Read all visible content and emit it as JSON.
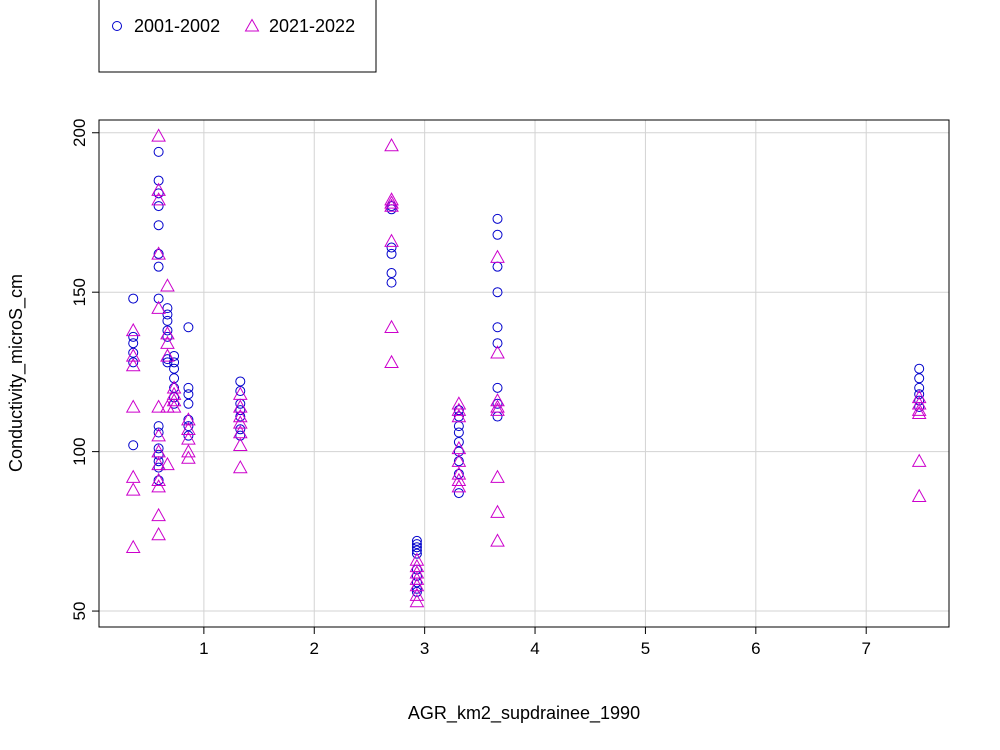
{
  "chart_data": {
    "type": "scatter",
    "title": "",
    "xlabel": "AGR_km2_supdrainee_1990",
    "ylabel": "Conductivity_microS_cm",
    "xlim": [
      0.05,
      7.75
    ],
    "ylim": [
      45,
      204
    ],
    "x_ticks": [
      1,
      2,
      3,
      4,
      5,
      6,
      7
    ],
    "y_ticks": [
      50,
      100,
      150,
      200
    ],
    "grid": true,
    "legend_position": "top-left",
    "series": [
      {
        "name": "2001-2002",
        "marker": "circle",
        "color": "#0000cc",
        "points": [
          [
            0.36,
            148
          ],
          [
            0.36,
            136
          ],
          [
            0.36,
            134
          ],
          [
            0.36,
            131
          ],
          [
            0.36,
            128
          ],
          [
            0.36,
            102
          ],
          [
            0.59,
            194
          ],
          [
            0.59,
            185
          ],
          [
            0.59,
            181
          ],
          [
            0.59,
            177
          ],
          [
            0.59,
            171
          ],
          [
            0.59,
            162
          ],
          [
            0.59,
            158
          ],
          [
            0.59,
            148
          ],
          [
            0.59,
            108
          ],
          [
            0.59,
            106
          ],
          [
            0.59,
            101
          ],
          [
            0.59,
            99
          ],
          [
            0.59,
            97
          ],
          [
            0.59,
            95
          ],
          [
            0.59,
            91
          ],
          [
            0.67,
            145
          ],
          [
            0.67,
            143
          ],
          [
            0.67,
            141
          ],
          [
            0.67,
            138
          ],
          [
            0.67,
            136
          ],
          [
            0.67,
            129
          ],
          [
            0.67,
            128
          ],
          [
            0.73,
            130
          ],
          [
            0.73,
            128
          ],
          [
            0.73,
            126
          ],
          [
            0.73,
            123
          ],
          [
            0.73,
            120
          ],
          [
            0.73,
            117
          ],
          [
            0.73,
            115
          ],
          [
            0.86,
            139
          ],
          [
            0.86,
            120
          ],
          [
            0.86,
            118
          ],
          [
            0.86,
            115
          ],
          [
            0.86,
            110
          ],
          [
            0.86,
            108
          ],
          [
            0.86,
            105
          ],
          [
            1.33,
            122
          ],
          [
            1.33,
            119
          ],
          [
            1.33,
            115
          ],
          [
            1.33,
            113
          ],
          [
            1.33,
            111
          ],
          [
            1.33,
            107
          ],
          [
            1.33,
            105
          ],
          [
            2.7,
            177
          ],
          [
            2.7,
            176
          ],
          [
            2.7,
            164
          ],
          [
            2.7,
            162
          ],
          [
            2.7,
            156
          ],
          [
            2.7,
            153
          ],
          [
            2.93,
            72
          ],
          [
            2.93,
            71
          ],
          [
            2.93,
            70
          ],
          [
            2.93,
            69
          ],
          [
            2.93,
            68
          ],
          [
            2.93,
            63
          ],
          [
            2.93,
            61
          ],
          [
            2.93,
            59
          ],
          [
            2.93,
            57
          ],
          [
            2.93,
            56
          ],
          [
            3.31,
            113
          ],
          [
            3.31,
            111
          ],
          [
            3.31,
            108
          ],
          [
            3.31,
            106
          ],
          [
            3.31,
            103
          ],
          [
            3.31,
            100
          ],
          [
            3.31,
            97
          ],
          [
            3.31,
            93
          ],
          [
            3.31,
            87
          ],
          [
            3.66,
            173
          ],
          [
            3.66,
            168
          ],
          [
            3.66,
            158
          ],
          [
            3.66,
            150
          ],
          [
            3.66,
            139
          ],
          [
            3.66,
            134
          ],
          [
            3.66,
            120
          ],
          [
            3.66,
            115
          ],
          [
            3.66,
            111
          ],
          [
            7.48,
            126
          ],
          [
            7.48,
            123
          ],
          [
            7.48,
            120
          ],
          [
            7.48,
            118
          ],
          [
            7.48,
            116
          ],
          [
            7.48,
            114
          ]
        ]
      },
      {
        "name": "2021-2022",
        "marker": "triangle",
        "color": "#cc00cc",
        "points": [
          [
            0.36,
            138
          ],
          [
            0.36,
            130
          ],
          [
            0.36,
            127
          ],
          [
            0.36,
            114
          ],
          [
            0.36,
            92
          ],
          [
            0.36,
            88
          ],
          [
            0.36,
            70
          ],
          [
            0.59,
            199
          ],
          [
            0.59,
            182
          ],
          [
            0.59,
            179
          ],
          [
            0.59,
            162
          ],
          [
            0.59,
            145
          ],
          [
            0.59,
            114
          ],
          [
            0.59,
            105
          ],
          [
            0.59,
            100
          ],
          [
            0.59,
            96
          ],
          [
            0.59,
            91
          ],
          [
            0.59,
            89
          ],
          [
            0.59,
            80
          ],
          [
            0.59,
            74
          ],
          [
            0.67,
            152
          ],
          [
            0.67,
            137
          ],
          [
            0.67,
            134
          ],
          [
            0.67,
            130
          ],
          [
            0.67,
            114
          ],
          [
            0.67,
            96
          ],
          [
            0.73,
            120
          ],
          [
            0.73,
            118
          ],
          [
            0.73,
            116
          ],
          [
            0.73,
            114
          ],
          [
            0.86,
            110
          ],
          [
            0.86,
            107
          ],
          [
            0.86,
            104
          ],
          [
            0.86,
            100
          ],
          [
            0.86,
            98
          ],
          [
            1.33,
            118
          ],
          [
            1.33,
            114
          ],
          [
            1.33,
            111
          ],
          [
            1.33,
            109
          ],
          [
            1.33,
            106
          ],
          [
            1.33,
            102
          ],
          [
            1.33,
            95
          ],
          [
            2.7,
            196
          ],
          [
            2.7,
            179
          ],
          [
            2.7,
            178
          ],
          [
            2.7,
            177
          ],
          [
            2.7,
            166
          ],
          [
            2.7,
            139
          ],
          [
            2.7,
            128
          ],
          [
            2.93,
            66
          ],
          [
            2.93,
            64
          ],
          [
            2.93,
            62
          ],
          [
            2.93,
            60
          ],
          [
            2.93,
            58
          ],
          [
            2.93,
            55
          ],
          [
            2.93,
            53
          ],
          [
            3.31,
            115
          ],
          [
            3.31,
            113
          ],
          [
            3.31,
            111
          ],
          [
            3.31,
            101
          ],
          [
            3.31,
            97
          ],
          [
            3.31,
            93
          ],
          [
            3.31,
            91
          ],
          [
            3.31,
            89
          ],
          [
            3.66,
            161
          ],
          [
            3.66,
            131
          ],
          [
            3.66,
            116
          ],
          [
            3.66,
            114
          ],
          [
            3.66,
            113
          ],
          [
            3.66,
            92
          ],
          [
            3.66,
            81
          ],
          [
            3.66,
            72
          ],
          [
            7.48,
            117
          ],
          [
            7.48,
            115
          ],
          [
            7.48,
            113
          ],
          [
            7.48,
            112
          ],
          [
            7.48,
            97
          ],
          [
            7.48,
            86
          ]
        ]
      }
    ]
  }
}
